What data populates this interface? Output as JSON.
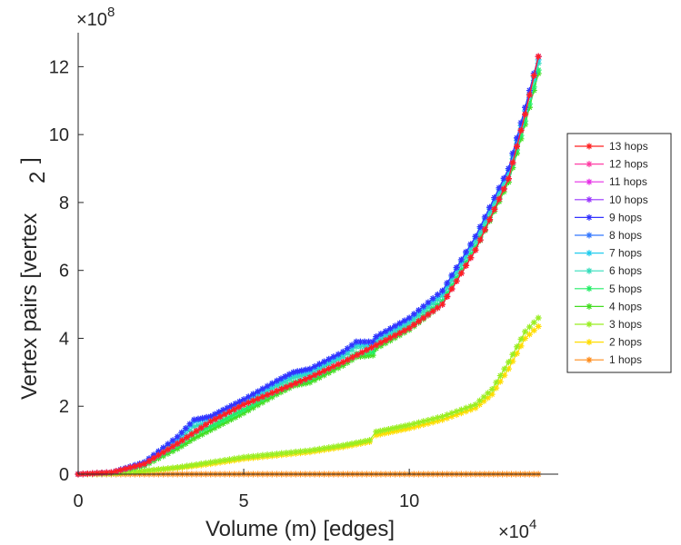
{
  "chart_data": {
    "type": "line",
    "xlabel": "Volume (m) [edges]",
    "ylabel_main": "Vertex pairs [vertex",
    "ylabel_super": "2",
    "ylabel_close": "]",
    "x_multiplier": {
      "base": "×10",
      "exp": "4"
    },
    "y_multiplier": {
      "base": "×10",
      "exp": "8"
    },
    "xlim": [
      0,
      14.5
    ],
    "ylim": [
      0,
      13
    ],
    "x_ticks": [
      0,
      5,
      10
    ],
    "x_tick_labels": [
      "0",
      "5",
      "10"
    ],
    "y_ticks": [
      0,
      2,
      4,
      6,
      8,
      10,
      12
    ],
    "y_tick_labels": [
      "0",
      "2",
      "4",
      "6",
      "8",
      "10",
      "12"
    ],
    "legend_position": "right",
    "series": [
      {
        "name": "13 hops",
        "color": "#ff2020",
        "x": [
          0,
          1,
          2,
          3,
          4,
          5,
          6,
          7,
          8,
          9,
          10,
          11,
          12,
          13,
          13.5,
          13.9
        ],
        "y": [
          0,
          0.05,
          0.3,
          0.9,
          1.55,
          2.05,
          2.45,
          2.85,
          3.3,
          3.8,
          4.3,
          5.0,
          6.6,
          8.7,
          10.6,
          12.3
        ]
      },
      {
        "name": "12 hops",
        "color": "#ff3fa5",
        "x": [
          0,
          1,
          2,
          3,
          4,
          5,
          6,
          7,
          8,
          9,
          10,
          11,
          12,
          13,
          13.5,
          13.9
        ],
        "y": [
          0,
          0.05,
          0.3,
          0.9,
          1.55,
          2.05,
          2.45,
          2.85,
          3.3,
          3.8,
          4.3,
          5.0,
          6.6,
          8.7,
          10.6,
          12.3
        ]
      },
      {
        "name": "11 hops",
        "color": "#e62ee6",
        "x": [
          0,
          1,
          2,
          3,
          4,
          5,
          6,
          7,
          8,
          9,
          10,
          11,
          12,
          13,
          13.5,
          13.9
        ],
        "y": [
          0,
          0.05,
          0.3,
          0.9,
          1.55,
          2.05,
          2.45,
          2.85,
          3.3,
          3.8,
          4.3,
          5.0,
          6.6,
          8.7,
          10.6,
          12.3
        ]
      },
      {
        "name": "10 hops",
        "color": "#9933ff",
        "x": [
          0,
          1,
          2,
          3,
          4,
          5,
          6,
          7,
          8,
          9,
          10,
          11,
          12,
          13,
          13.5,
          13.9
        ],
        "y": [
          0,
          0.05,
          0.3,
          0.9,
          1.55,
          2.05,
          2.45,
          2.85,
          3.3,
          3.8,
          4.3,
          5.0,
          6.6,
          8.7,
          10.6,
          12.3
        ]
      },
      {
        "name": "9 hops",
        "color": "#3333ff",
        "x": [
          0,
          1,
          2,
          3,
          3.5,
          4,
          4.5,
          5,
          6,
          6.5,
          7,
          8,
          8.4,
          8.9,
          9,
          10,
          11,
          12,
          13,
          13.5,
          13.9
        ],
        "y": [
          0,
          0.05,
          0.35,
          1.1,
          1.6,
          1.7,
          1.95,
          2.2,
          2.75,
          3.0,
          3.1,
          3.6,
          3.9,
          3.9,
          4.05,
          4.6,
          5.4,
          7.0,
          9.0,
          10.8,
          12.3
        ]
      },
      {
        "name": "8 hops",
        "color": "#3377ff",
        "x": [
          0,
          1,
          2,
          3,
          3.5,
          4,
          4.5,
          5,
          6,
          6.5,
          7,
          8,
          8.4,
          8.9,
          9,
          10,
          11,
          12,
          13,
          13.5,
          13.9
        ],
        "y": [
          0,
          0.05,
          0.35,
          1.1,
          1.6,
          1.7,
          1.95,
          2.2,
          2.75,
          3.0,
          3.1,
          3.6,
          3.9,
          3.9,
          4.05,
          4.6,
          5.4,
          7.0,
          9.0,
          10.8,
          12.3
        ]
      },
      {
        "name": "7 hops",
        "color": "#22ccee",
        "x": [
          0,
          1,
          2,
          3,
          3.5,
          4,
          4.5,
          5,
          6,
          6.5,
          7,
          8,
          8.4,
          8.9,
          9,
          10,
          11,
          12,
          13,
          13.5,
          13.9
        ],
        "y": [
          0,
          0.05,
          0.33,
          1.05,
          1.55,
          1.65,
          1.9,
          2.15,
          2.7,
          2.95,
          3.05,
          3.55,
          3.85,
          3.85,
          4.0,
          4.55,
          5.35,
          6.95,
          8.95,
          10.7,
          12.2
        ]
      },
      {
        "name": "6 hops",
        "color": "#33ddbb",
        "x": [
          0,
          1,
          2,
          3,
          3.5,
          4,
          4.5,
          5,
          6,
          6.5,
          7,
          8,
          8.4,
          8.9,
          9,
          10,
          11,
          12,
          13,
          13.5,
          13.9
        ],
        "y": [
          0,
          0.05,
          0.3,
          0.95,
          1.4,
          1.55,
          1.8,
          2.05,
          2.6,
          2.85,
          2.95,
          3.45,
          3.75,
          3.75,
          3.9,
          4.45,
          5.25,
          6.85,
          8.85,
          10.6,
          12.1
        ]
      },
      {
        "name": "5 hops",
        "color": "#22ee66",
        "x": [
          0,
          1,
          2,
          3,
          3.5,
          4,
          4.5,
          5,
          6,
          6.5,
          7,
          8,
          8.4,
          8.9,
          9,
          10,
          11,
          12,
          13,
          13.5,
          13.9
        ],
        "y": [
          0,
          0.05,
          0.28,
          0.85,
          1.2,
          1.4,
          1.65,
          1.9,
          2.45,
          2.7,
          2.8,
          3.3,
          3.55,
          3.6,
          3.8,
          4.35,
          5.1,
          6.7,
          8.7,
          10.4,
          11.9
        ]
      },
      {
        "name": "4 hops",
        "color": "#44dd22",
        "x": [
          0,
          1,
          2,
          3,
          3.5,
          4,
          4.5,
          5,
          6,
          6.5,
          7,
          8,
          8.4,
          8.9,
          9,
          10,
          11,
          12,
          13,
          13.5,
          13.9
        ],
        "y": [
          0,
          0.05,
          0.25,
          0.75,
          1.05,
          1.3,
          1.55,
          1.8,
          2.35,
          2.6,
          2.7,
          3.2,
          3.45,
          3.5,
          3.7,
          4.25,
          5.0,
          6.6,
          8.6,
          10.3,
          11.8
        ]
      },
      {
        "name": "3 hops",
        "color": "#99ee22",
        "x": [
          0,
          1,
          2,
          3,
          4,
          5,
          6,
          7,
          8,
          8.8,
          9,
          9.5,
          10,
          11,
          12,
          12.5,
          13,
          13.5,
          13.9
        ],
        "y": [
          0,
          0.02,
          0.1,
          0.2,
          0.35,
          0.5,
          0.6,
          0.7,
          0.85,
          1.0,
          1.25,
          1.35,
          1.45,
          1.7,
          2.05,
          2.5,
          3.3,
          4.2,
          4.6
        ]
      },
      {
        "name": "2 hops",
        "color": "#ffdd00",
        "x": [
          0,
          1,
          2,
          3,
          4,
          5,
          6,
          7,
          8,
          8.8,
          9,
          9.5,
          10,
          11,
          12,
          12.5,
          13,
          13.5,
          13.9
        ],
        "y": [
          0,
          0.02,
          0.09,
          0.18,
          0.3,
          0.45,
          0.55,
          0.65,
          0.8,
          0.95,
          1.15,
          1.25,
          1.35,
          1.6,
          1.95,
          2.35,
          3.1,
          4.0,
          4.35
        ]
      },
      {
        "name": "1 hops",
        "color": "#ff8c1a",
        "x": [
          0,
          2,
          4,
          6,
          8,
          10,
          12,
          13.9
        ],
        "y": [
          0,
          0,
          0,
          0,
          0,
          0,
          0,
          0
        ]
      }
    ]
  }
}
